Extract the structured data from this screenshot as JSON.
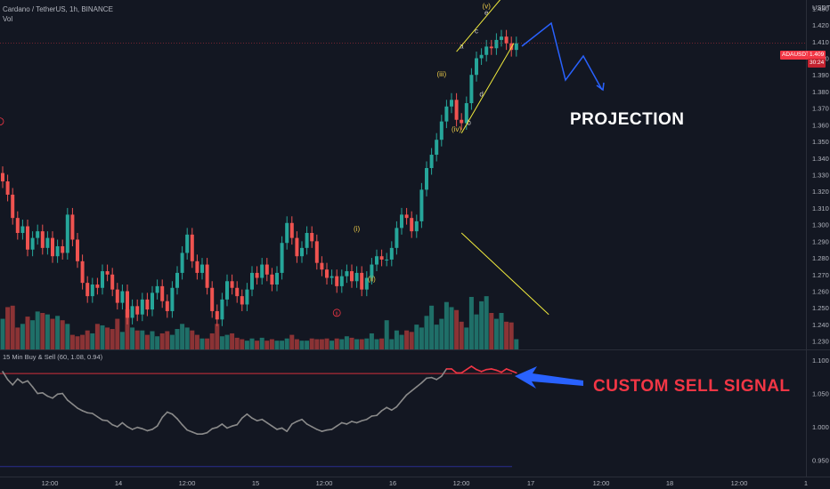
{
  "header": {
    "symbol_line": "Cardano / TetherUS, 1h, BINANCE",
    "volume_label": "Vol",
    "indicator_label": "15 Min Buy & Sell (60, 1.08, 0.94)"
  },
  "price_badge": {
    "symbol": "ADAUSDT",
    "price": "1.409",
    "countdown": "30:24"
  },
  "annotations": {
    "projection_text": "PROJECTION",
    "signal_text": "CUSTOM SELL SIGNAL",
    "waves": [
      "(i)",
      "(ii)",
      "(iii)",
      "(iv)",
      "(v)",
      "a",
      "b",
      "c",
      "d",
      "e"
    ],
    "marker_ii": "ii"
  },
  "colors": {
    "background": "#131722",
    "up_candle": "#26a69a",
    "down_candle": "#ef5350",
    "vol_up": "#1f6f68",
    "vol_down": "#8b3335",
    "trend_line": "#f0ea3c",
    "projection": "#2962ff",
    "signal_line": "#8a8a8a",
    "signal_high": "#f23645",
    "threshold_line": "#d12f3b",
    "low_threshold_line": "#2a2e8f",
    "wave_label": "#e8c848",
    "signal_text": "#f23645",
    "projection_text": "#ffffff"
  },
  "chart_data": [
    {
      "type": "candlestick",
      "title": "Cardano / TetherUS, 1h, BINANCE",
      "y_axis_unit": "USDT",
      "ylim": [
        1.225,
        1.435
      ],
      "y_ticks": [
        "1.430",
        "1.420",
        "1.410",
        "1.400",
        "1.390",
        "1.380",
        "1.370",
        "1.360",
        "1.350",
        "1.340",
        "1.330",
        "1.320",
        "1.310",
        "1.300",
        "1.290",
        "1.280",
        "1.270",
        "1.260",
        "1.250",
        "1.240",
        "1.230"
      ],
      "x_ticks": [
        "12:00",
        "14",
        "12:00",
        "15",
        "12:00",
        "16",
        "12:00",
        "17",
        "12:00",
        "18",
        "12:00",
        "1"
      ],
      "close_prices": [
        1.326,
        1.318,
        1.304,
        1.295,
        1.299,
        1.285,
        1.292,
        1.296,
        1.286,
        1.292,
        1.281,
        1.287,
        1.283,
        1.306,
        1.291,
        1.278,
        1.265,
        1.257,
        1.264,
        1.262,
        1.272,
        1.27,
        1.261,
        1.253,
        1.26,
        1.244,
        1.251,
        1.246,
        1.255,
        1.249,
        1.259,
        1.263,
        1.254,
        1.248,
        1.262,
        1.271,
        1.283,
        1.294,
        1.278,
        1.271,
        1.276,
        1.262,
        1.248,
        1.243,
        1.255,
        1.266,
        1.262,
        1.257,
        1.252,
        1.261,
        1.271,
        1.268,
        1.276,
        1.27,
        1.264,
        1.271,
        1.289,
        1.301,
        1.292,
        1.281,
        1.286,
        1.295,
        1.29,
        1.277,
        1.273,
        1.268,
        1.269,
        1.263,
        1.269,
        1.272,
        1.266,
        1.271,
        1.261,
        1.268,
        1.276,
        1.281,
        1.279,
        1.279,
        1.286,
        1.298,
        1.306,
        1.304,
        1.296,
        1.302,
        1.321,
        1.334,
        1.342,
        1.351,
        1.362,
        1.371,
        1.375,
        1.363,
        1.361,
        1.373,
        1.39,
        1.4,
        1.402,
        1.407,
        1.406,
        1.411,
        1.413,
        1.409,
        1.405,
        1.409
      ],
      "wave_counts": [
        "(i)",
        "(ii)",
        "(iii)",
        "(iv)",
        "(v)",
        "a",
        "b",
        "c",
        "d",
        "e"
      ],
      "current_price": 1.409
    },
    {
      "type": "bar",
      "title": "Vol",
      "series_note": "relative volume per candle, 0-1 scale",
      "values": [
        0.42,
        0.58,
        0.6,
        0.3,
        0.35,
        0.45,
        0.4,
        0.52,
        0.5,
        0.48,
        0.42,
        0.46,
        0.4,
        0.35,
        0.2,
        0.18,
        0.2,
        0.26,
        0.22,
        0.35,
        0.33,
        0.3,
        0.28,
        0.42,
        0.24,
        0.55,
        0.3,
        0.26,
        0.26,
        0.2,
        0.25,
        0.18,
        0.22,
        0.25,
        0.2,
        0.28,
        0.35,
        0.3,
        0.26,
        0.2,
        0.15,
        0.15,
        0.22,
        0.35,
        0.18,
        0.2,
        0.22,
        0.16,
        0.14,
        0.12,
        0.15,
        0.12,
        0.16,
        0.12,
        0.14,
        0.12,
        0.12,
        0.15,
        0.2,
        0.14,
        0.12,
        0.12,
        0.15,
        0.14,
        0.14,
        0.15,
        0.12,
        0.15,
        0.14,
        0.18,
        0.16,
        0.14,
        0.14,
        0.15,
        0.22,
        0.14,
        0.15,
        0.4,
        0.14,
        0.26,
        0.2,
        0.26,
        0.24,
        0.34,
        0.3,
        0.46,
        0.6,
        0.34,
        0.42,
        0.65,
        0.58,
        0.54,
        0.38,
        0.3,
        0.72,
        0.48,
        0.66,
        0.73,
        0.5,
        0.42,
        0.5,
        0.38,
        0.37,
        0.14
      ]
    },
    {
      "type": "line",
      "title": "15 Min Buy & Sell (60, 1.08, 0.94)",
      "ylim": [
        0.925,
        1.115
      ],
      "y_ticks": [
        "1.100",
        "1.050",
        "1.000",
        "0.950"
      ],
      "thresholds": [
        1.08,
        0.94
      ],
      "values": [
        1.083,
        1.071,
        1.063,
        1.072,
        1.066,
        1.069,
        1.06,
        1.05,
        1.051,
        1.046,
        1.043,
        1.049,
        1.05,
        1.04,
        1.034,
        1.028,
        1.024,
        1.021,
        1.02,
        1.015,
        1.01,
        1.009,
        1.003,
        1.0,
        1.006,
        1.0,
        0.996,
        0.999,
        0.997,
        0.994,
        0.996,
        1.001,
        1.014,
        1.022,
        1.019,
        1.012,
        1.003,
        0.995,
        0.992,
        0.989,
        0.989,
        0.991,
        0.997,
        0.999,
        1.004,
        0.998,
        1.001,
        1.003,
        1.013,
        1.019,
        1.013,
        1.009,
        1.011,
        1.006,
        1.001,
        0.996,
        0.998,
        0.993,
        1.004,
        1.008,
        1.011,
        1.004,
        1.0,
        0.996,
        0.993,
        0.995,
        0.996,
        1.001,
        1.006,
        1.004,
        1.008,
        1.006,
        1.009,
        1.011,
        1.016,
        1.017,
        1.024,
        1.029,
        1.025,
        1.03,
        1.039,
        1.048,
        1.054,
        1.06,
        1.066,
        1.073,
        1.074,
        1.071,
        1.076,
        1.087,
        1.087,
        1.081,
        1.081,
        1.086,
        1.091,
        1.086,
        1.083,
        1.086,
        1.087,
        1.085,
        1.082,
        1.087,
        1.084,
        1.081
      ]
    }
  ]
}
